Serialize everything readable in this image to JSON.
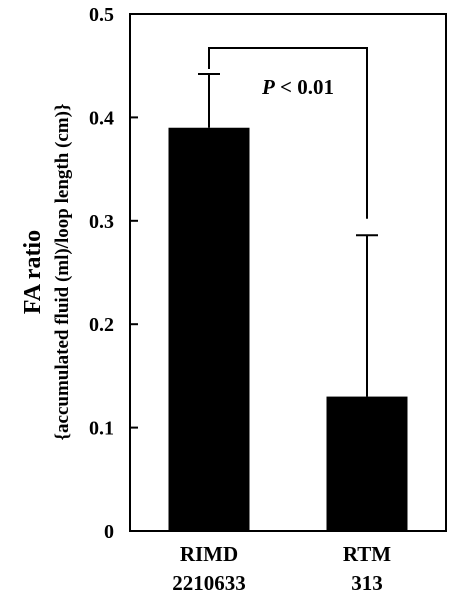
{
  "chart_data": {
    "type": "bar",
    "categories": [
      [
        "RIMD",
        "2210633"
      ],
      [
        "RTM",
        "313"
      ]
    ],
    "values": [
      0.39,
      0.13
    ],
    "error_upper": [
      0.442,
      0.286
    ],
    "ylim": [
      0,
      0.5
    ],
    "yticks": [
      "0",
      "0.1",
      "0.2",
      "0.3",
      "0.4",
      "0.5"
    ],
    "ylabel_main": "FA ratio",
    "ylabel_sub": "{accumulated fluid (ml)/loop length (cm)}",
    "annotation": {
      "p_symbol": "P",
      "p_text": " < 0.01"
    },
    "bar_color": "#000000",
    "grid": false,
    "legend": "none"
  }
}
